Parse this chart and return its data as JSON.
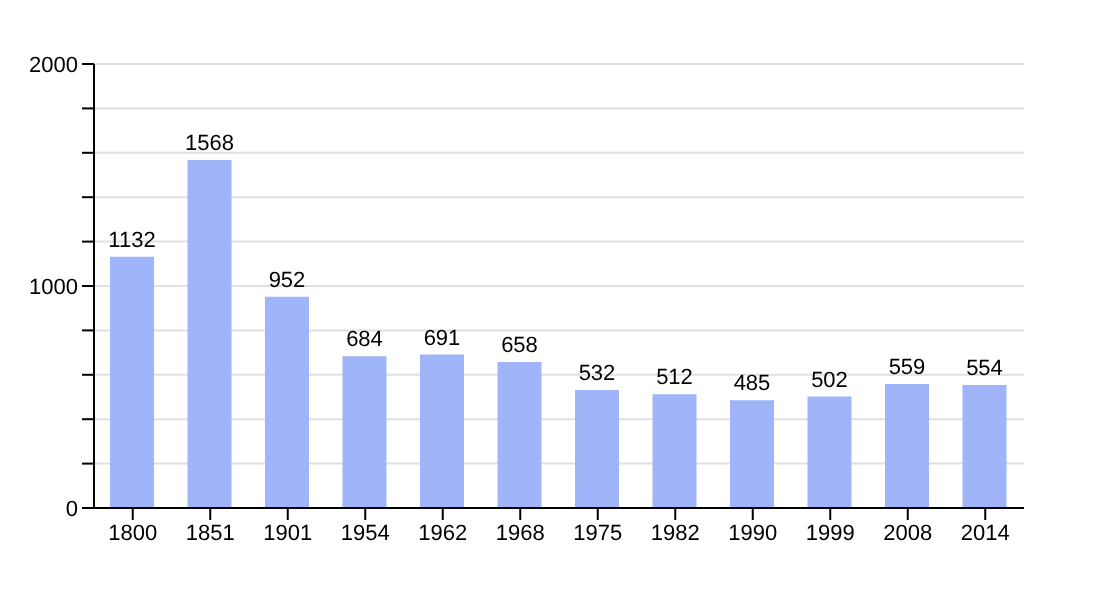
{
  "chart_data": {
    "type": "bar",
    "categories": [
      "1800",
      "1851",
      "1901",
      "1954",
      "1962",
      "1968",
      "1975",
      "1982",
      "1990",
      "1999",
      "2008",
      "2014"
    ],
    "values": [
      1132,
      1568,
      952,
      684,
      691,
      658,
      532,
      512,
      485,
      502,
      559,
      554
    ],
    "color": "#a0b4fa",
    "data_labels": true,
    "grid": "y",
    "ylim": [
      0,
      2000
    ],
    "yticks": [
      0,
      {
        "value": 200,
        "label": null
      },
      {
        "value": 400,
        "label": null
      },
      {
        "value": 600,
        "label": null
      },
      {
        "value": 800,
        "label": null
      },
      1000,
      {
        "value": 1200,
        "label": null
      },
      {
        "value": 1400,
        "label": null
      },
      {
        "value": 1600,
        "label": null
      },
      {
        "value": 1800,
        "label": null
      },
      2000
    ]
  }
}
